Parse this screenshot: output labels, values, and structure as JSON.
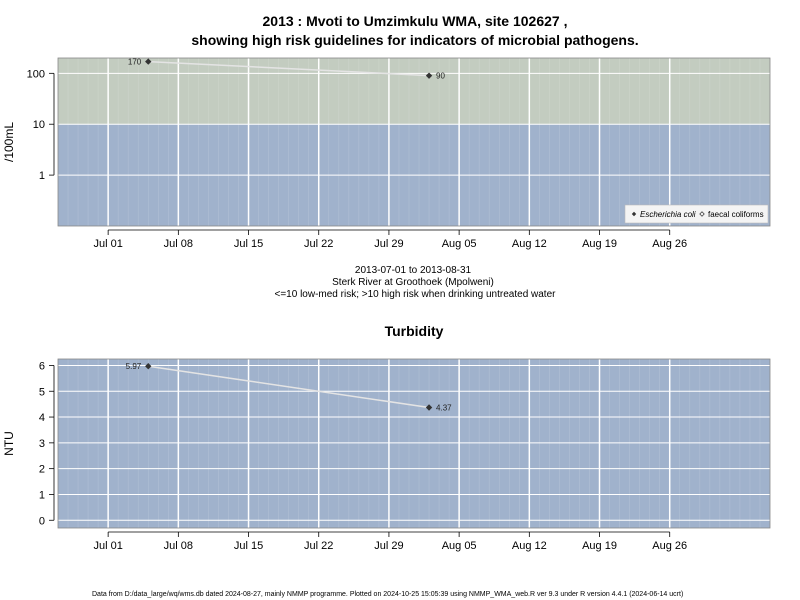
{
  "figure": {
    "title_line1": "2013 : Mvoti to Umzimkulu WMA, site 102627 ,",
    "title_line2": "showing high risk guidelines for indicators of microbial pathogens.",
    "footer": "Data from D:/data_large/wq/wms.db dated 2024-08-27, mainly NMMP programme. Plotted on 2024-10-25 15:05:39 using NMMP_WMA_web.R ver 9.3 under R version 4.4.1 (2024-06-14 ucrt)"
  },
  "chart_data": [
    {
      "type": "line",
      "title": "",
      "ylabel": "/100mL",
      "yscale": "log",
      "ylim": [
        0.1,
        200
      ],
      "y_ticks": [
        1,
        10,
        100
      ],
      "y_tick_labels": [
        "1",
        "10",
        "100"
      ],
      "xlim": [
        "2013-06-26",
        "2013-09-05"
      ],
      "x_ticks": [
        "2013-07-01",
        "2013-07-08",
        "2013-07-15",
        "2013-07-22",
        "2013-07-29",
        "2013-08-05",
        "2013-08-12",
        "2013-08-19",
        "2013-08-26"
      ],
      "x_tick_labels": [
        "Jul 01",
        "Jul 08",
        "Jul 15",
        "Jul 22",
        "Jul 29",
        "Aug 05",
        "Aug 12",
        "Aug 19",
        "Aug 26"
      ],
      "grid": true,
      "bands": [
        {
          "label": "<=10 low-med risk",
          "from": 0.1,
          "to": 10,
          "color": "#a0b2cc"
        },
        {
          "label": ">10 high risk when drinking untreated water",
          "from": 10,
          "to": 200,
          "color": "#c3ccc0"
        }
      ],
      "series": [
        {
          "name": "Escherichia coli",
          "marker": "filled-diamond",
          "color": "#333333",
          "x": [
            "2013-07-05",
            "2013-08-02"
          ],
          "y": [
            170,
            90
          ],
          "labels": [
            "170",
            "90"
          ]
        },
        {
          "name": "faecal coliforms",
          "marker": "open-diamond",
          "color": "#333333",
          "x": [],
          "y": []
        }
      ],
      "legend_position": "bottom-right",
      "caption_lines": [
        "2013-07-01 to 2013-08-31",
        "Sterk River at Groothoek (Mpolweni)",
        "<=10 low-med risk; >10 high risk when drinking untreated water"
      ]
    },
    {
      "type": "line",
      "title": "Turbidity",
      "ylabel": "NTU",
      "yscale": "linear",
      "ylim": [
        -0.3,
        6.25
      ],
      "y_ticks": [
        0,
        1,
        2,
        3,
        4,
        5,
        6
      ],
      "y_tick_labels": [
        "0",
        "1",
        "2",
        "3",
        "4",
        "5",
        "6"
      ],
      "xlim": [
        "2013-06-26",
        "2013-09-05"
      ],
      "x_ticks": [
        "2013-07-01",
        "2013-07-08",
        "2013-07-15",
        "2013-07-22",
        "2013-07-29",
        "2013-08-05",
        "2013-08-12",
        "2013-08-19",
        "2013-08-26"
      ],
      "x_tick_labels": [
        "Jul 01",
        "Jul 08",
        "Jul 15",
        "Jul 22",
        "Jul 29",
        "Aug 05",
        "Aug 12",
        "Aug 19",
        "Aug 26"
      ],
      "grid": true,
      "bands": [
        {
          "label": "",
          "from": -0.3,
          "to": 6.25,
          "color": "#a0b2cc"
        }
      ],
      "series": [
        {
          "name": "Turbidity",
          "marker": "filled-diamond",
          "color": "#333333",
          "x": [
            "2013-07-05",
            "2013-08-02"
          ],
          "y": [
            5.97,
            4.37
          ],
          "labels": [
            "5.97",
            "4.37"
          ]
        }
      ]
    }
  ]
}
